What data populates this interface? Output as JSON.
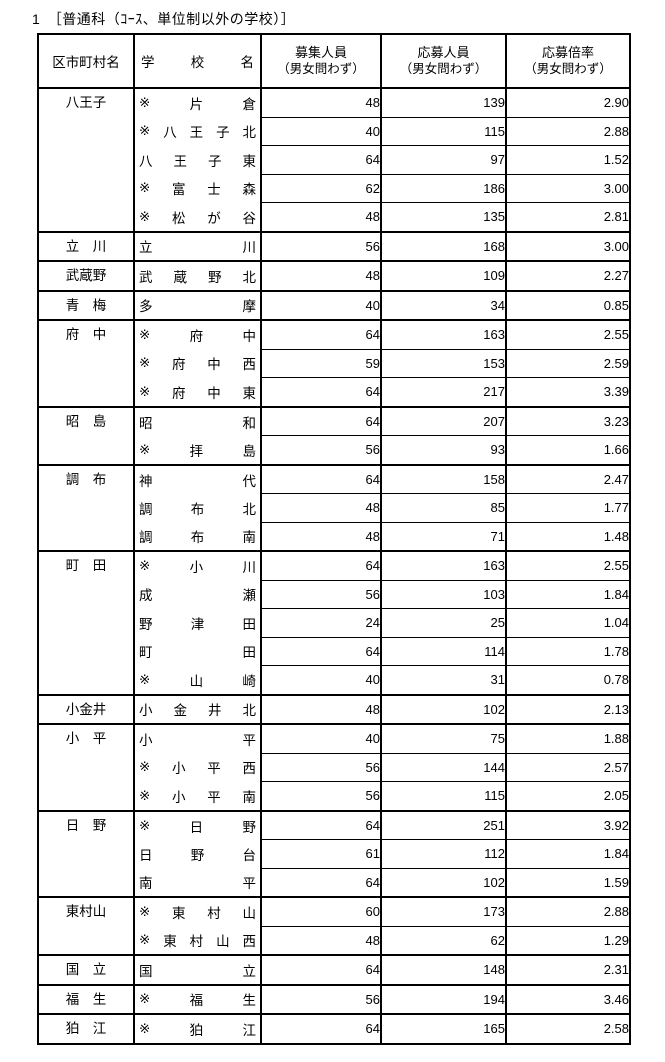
{
  "title": "1　［普通科（ｺｰｽ、単位制以外の学校）］",
  "table": {
    "columns": [
      {
        "label": "区市町村名"
      },
      {
        "label": "学校名"
      },
      {
        "line1": "募集人員",
        "line2": "（男女問わず）"
      },
      {
        "line1": "応募人員",
        "line2": "（男女問わず）"
      },
      {
        "line1": "応募倍率",
        "line2": "（男女問わず）"
      }
    ],
    "groups": [
      {
        "municipality": "八王子",
        "schools": [
          {
            "name": "※片倉",
            "capacity": "48",
            "applicants": "139",
            "ratio": "2.90"
          },
          {
            "name": "※八王子北",
            "capacity": "40",
            "applicants": "115",
            "ratio": "2.88"
          },
          {
            "name": "八王子東",
            "capacity": "64",
            "applicants": "97",
            "ratio": "1.52"
          },
          {
            "name": "※富士森",
            "capacity": "62",
            "applicants": "186",
            "ratio": "3.00"
          },
          {
            "name": "※松が谷",
            "capacity": "48",
            "applicants": "135",
            "ratio": "2.81"
          }
        ]
      },
      {
        "municipality": "立　川",
        "schools": [
          {
            "name": "立川",
            "capacity": "56",
            "applicants": "168",
            "ratio": "3.00"
          }
        ]
      },
      {
        "municipality": "武蔵野",
        "schools": [
          {
            "name": "武蔵野北",
            "capacity": "48",
            "applicants": "109",
            "ratio": "2.27"
          }
        ]
      },
      {
        "municipality": "青　梅",
        "schools": [
          {
            "name": "多摩",
            "capacity": "40",
            "applicants": "34",
            "ratio": "0.85"
          }
        ]
      },
      {
        "municipality": "府　中",
        "schools": [
          {
            "name": "※府中",
            "capacity": "64",
            "applicants": "163",
            "ratio": "2.55"
          },
          {
            "name": "※府中西",
            "capacity": "59",
            "applicants": "153",
            "ratio": "2.59"
          },
          {
            "name": "※府中東",
            "capacity": "64",
            "applicants": "217",
            "ratio": "3.39"
          }
        ]
      },
      {
        "municipality": "昭　島",
        "schools": [
          {
            "name": "昭和",
            "capacity": "64",
            "applicants": "207",
            "ratio": "3.23"
          },
          {
            "name": "※拝島",
            "capacity": "56",
            "applicants": "93",
            "ratio": "1.66"
          }
        ]
      },
      {
        "municipality": "調　布",
        "schools": [
          {
            "name": "神代",
            "capacity": "64",
            "applicants": "158",
            "ratio": "2.47"
          },
          {
            "name": "調布北",
            "capacity": "48",
            "applicants": "85",
            "ratio": "1.77"
          },
          {
            "name": "調布南",
            "capacity": "48",
            "applicants": "71",
            "ratio": "1.48"
          }
        ]
      },
      {
        "municipality": "町　田",
        "schools": [
          {
            "name": "※小川",
            "capacity": "64",
            "applicants": "163",
            "ratio": "2.55"
          },
          {
            "name": "成瀬",
            "capacity": "56",
            "applicants": "103",
            "ratio": "1.84"
          },
          {
            "name": "野津田",
            "capacity": "24",
            "applicants": "25",
            "ratio": "1.04"
          },
          {
            "name": "町田",
            "capacity": "64",
            "applicants": "114",
            "ratio": "1.78"
          },
          {
            "name": "※山崎",
            "capacity": "40",
            "applicants": "31",
            "ratio": "0.78"
          }
        ]
      },
      {
        "municipality": "小金井",
        "schools": [
          {
            "name": "小金井北",
            "capacity": "48",
            "applicants": "102",
            "ratio": "2.13"
          }
        ]
      },
      {
        "municipality": "小　平",
        "schools": [
          {
            "name": "小平",
            "capacity": "40",
            "applicants": "75",
            "ratio": "1.88"
          },
          {
            "name": "※小平西",
            "capacity": "56",
            "applicants": "144",
            "ratio": "2.57"
          },
          {
            "name": "※小平南",
            "capacity": "56",
            "applicants": "115",
            "ratio": "2.05"
          }
        ]
      },
      {
        "municipality": "日　野",
        "schools": [
          {
            "name": "※日野",
            "capacity": "64",
            "applicants": "251",
            "ratio": "3.92"
          },
          {
            "name": "日野台",
            "capacity": "61",
            "applicants": "112",
            "ratio": "1.84"
          },
          {
            "name": "南平",
            "capacity": "64",
            "applicants": "102",
            "ratio": "1.59"
          }
        ]
      },
      {
        "municipality": "東村山",
        "schools": [
          {
            "name": "※東村山",
            "capacity": "60",
            "applicants": "173",
            "ratio": "2.88"
          },
          {
            "name": "※東村山西",
            "capacity": "48",
            "applicants": "62",
            "ratio": "1.29"
          }
        ]
      },
      {
        "municipality": "国　立",
        "schools": [
          {
            "name": "国立",
            "capacity": "64",
            "applicants": "148",
            "ratio": "2.31"
          }
        ]
      },
      {
        "municipality": "福　生",
        "schools": [
          {
            "name": "※福生",
            "capacity": "56",
            "applicants": "194",
            "ratio": "3.46"
          }
        ]
      },
      {
        "municipality": "狛　江",
        "schools": [
          {
            "name": "※狛江",
            "capacity": "64",
            "applicants": "165",
            "ratio": "2.58"
          }
        ]
      }
    ]
  }
}
